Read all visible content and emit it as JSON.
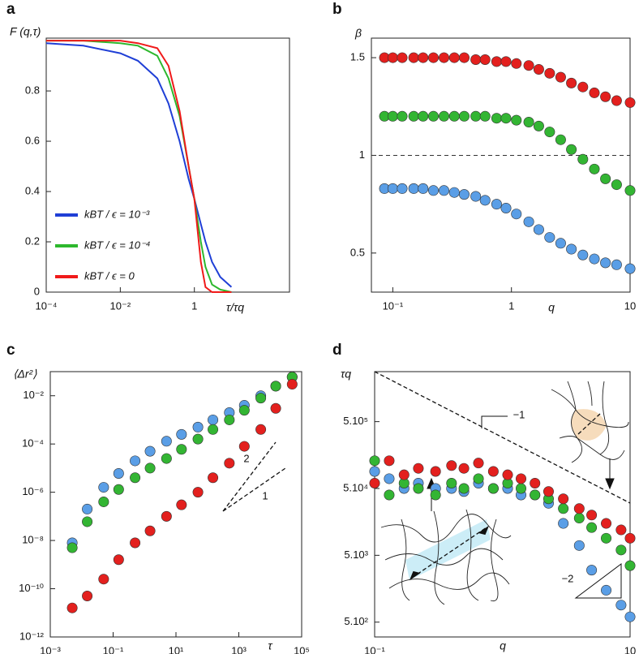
{
  "chart_data": [
    {
      "type": "line",
      "panel": "a",
      "ylabel": "F (q,τ)",
      "xlabel": "τ/τq",
      "xscale": "log",
      "xlim": [
        0.0001,
        370
      ],
      "ylim": [
        0,
        1.01
      ],
      "xticks": [
        {
          "value": 0.0001,
          "label": "10⁻⁴"
        },
        {
          "value": 0.01,
          "label": "10⁻²"
        },
        1
      ],
      "yticks": [
        0,
        0.2,
        0.4,
        0.6,
        0.8
      ],
      "x": [
        0.0001,
        0.001,
        0.01,
        0.03,
        0.1,
        0.2,
        0.4,
        0.7,
        1,
        1.5,
        2,
        3,
        5,
        10
      ],
      "series": [
        {
          "name": "kBT / ϵ = 10⁻³",
          "color": "#1f3fd6",
          "values": [
            0.99,
            0.98,
            0.95,
            0.92,
            0.85,
            0.75,
            0.6,
            0.45,
            0.37,
            0.27,
            0.2,
            0.12,
            0.06,
            0.02
          ]
        },
        {
          "name": "kBT / ϵ = 10⁻⁴",
          "color": "#2db82d",
          "values": [
            1,
            1,
            0.99,
            0.98,
            0.94,
            0.85,
            0.7,
            0.5,
            0.37,
            0.2,
            0.1,
            0.03,
            0.01,
            0
          ]
        },
        {
          "name": "kBT / ϵ = 0",
          "color": "#f01a1a",
          "values": [
            1,
            1,
            1,
            0.99,
            0.97,
            0.9,
            0.72,
            0.5,
            0.37,
            0.12,
            0.02,
            0,
            0,
            0
          ]
        }
      ]
    },
    {
      "type": "scatter",
      "panel": "b",
      "ylabel": "β",
      "xlabel": "q",
      "xscale": "log",
      "xlim": [
        0.066,
        10
      ],
      "ylim": [
        0.3,
        1.6
      ],
      "xticks": [
        {
          "value": 0.1,
          "label": "10⁻¹"
        },
        1,
        10
      ],
      "yticks": [
        0.5,
        1,
        1.5
      ],
      "reference_line": 1,
      "x": [
        0.085,
        0.1,
        0.12,
        0.15,
        0.18,
        0.22,
        0.27,
        0.33,
        0.4,
        0.5,
        0.6,
        0.75,
        0.9,
        1.1,
        1.4,
        1.7,
        2.1,
        2.6,
        3.2,
        4,
        5,
        6.2,
        7.7,
        10
      ],
      "series": [
        {
          "color": "#5a9ee6",
          "values": [
            0.83,
            0.83,
            0.83,
            0.83,
            0.83,
            0.82,
            0.82,
            0.81,
            0.8,
            0.79,
            0.77,
            0.75,
            0.73,
            0.7,
            0.66,
            0.62,
            0.58,
            0.55,
            0.52,
            0.49,
            0.47,
            0.45,
            0.44,
            0.42
          ]
        },
        {
          "color": "#33b533",
          "values": [
            1.2,
            1.2,
            1.2,
            1.2,
            1.2,
            1.2,
            1.2,
            1.2,
            1.2,
            1.2,
            1.2,
            1.19,
            1.19,
            1.18,
            1.17,
            1.15,
            1.12,
            1.08,
            1.03,
            0.98,
            0.93,
            0.88,
            0.85,
            0.82
          ]
        },
        {
          "color": "#e3201e",
          "values": [
            1.5,
            1.5,
            1.5,
            1.5,
            1.5,
            1.5,
            1.5,
            1.5,
            1.5,
            1.49,
            1.49,
            1.48,
            1.48,
            1.47,
            1.46,
            1.44,
            1.42,
            1.4,
            1.37,
            1.35,
            1.32,
            1.3,
            1.28,
            1.27
          ]
        }
      ]
    },
    {
      "type": "scatter",
      "panel": "c",
      "ylabel": "⟨Δr²⟩",
      "xlabel": "τ",
      "xscale": "log",
      "yscale": "log",
      "xlim": [
        0.001,
        100000
      ],
      "ylim": [
        1e-12,
        0.1
      ],
      "xticks": [
        {
          "value": 0.001,
          "label": "10⁻³"
        },
        {
          "value": 0.1,
          "label": "10⁻¹"
        },
        {
          "value": 10,
          "label": "10¹"
        },
        {
          "value": 1000,
          "label": "10³"
        },
        {
          "value": 100000,
          "label": "10⁵"
        }
      ],
      "yticks": [
        {
          "value": 1e-12,
          "label": "10⁻¹²"
        },
        {
          "value": 1e-10,
          "label": "10⁻¹⁰"
        },
        {
          "value": 1e-08,
          "label": "10⁻⁸"
        },
        {
          "value": 1e-06,
          "label": "10⁻⁶"
        },
        {
          "value": 0.0001,
          "label": "10⁻⁴"
        },
        {
          "value": 0.01,
          "label": "10⁻²"
        }
      ],
      "annotations": [
        "2",
        "1"
      ],
      "x": [
        0.005,
        0.015,
        0.05,
        0.15,
        0.5,
        1.5,
        5,
        15,
        50,
        150,
        500,
        1500,
        5000,
        15000,
        50000
      ],
      "series": [
        {
          "color": "#5a9ee6",
          "values": [
            8e-09,
            2e-07,
            1.6e-06,
            6e-06,
            2e-05,
            5e-05,
            0.00013,
            0.00025,
            0.0005,
            0.001,
            0.002,
            0.004,
            0.01,
            0.025,
            0.06
          ]
        },
        {
          "color": "#33b533",
          "values": [
            5e-09,
            6e-08,
            4e-07,
            1.3e-06,
            4e-06,
            1e-05,
            2.5e-05,
            6e-05,
            0.00016,
            0.0004,
            0.001,
            0.0025,
            0.008,
            0.025,
            0.06
          ]
        },
        {
          "color": "#e3201e",
          "values": [
            1.6e-11,
            5e-11,
            2.5e-10,
            1.6e-09,
            8e-09,
            2.5e-08,
            1e-07,
            3e-07,
            1e-06,
            4e-06,
            1.6e-05,
            8e-05,
            0.0004,
            0.003,
            0.03
          ]
        }
      ]
    },
    {
      "type": "scatter",
      "panel": "d",
      "ylabel": "τq",
      "xlabel": "q",
      "xscale": "log",
      "yscale": "log",
      "xlim": [
        0.1,
        10
      ],
      "ylim": [
        300,
        2800000
      ],
      "xticks": [
        {
          "value": 0.1,
          "label": "10⁻¹"
        },
        10
      ],
      "yticks": [
        {
          "value": 500,
          "label": "5.10²"
        },
        {
          "value": 5000,
          "label": "5.10³"
        },
        {
          "value": 50000,
          "label": "5.10⁴"
        },
        {
          "value": 500000,
          "label": "5.10⁵"
        }
      ],
      "annotations": [
        "−1",
        "−2"
      ],
      "x": [
        0.1,
        0.13,
        0.17,
        0.22,
        0.3,
        0.4,
        0.5,
        0.65,
        0.85,
        1.1,
        1.4,
        1.8,
        2.3,
        3,
        4,
        5,
        6.5,
        8.5,
        10
      ],
      "series": [
        {
          "color": "#5a9ee6",
          "values": [
            90000,
            70000,
            50000,
            60000,
            50000,
            50000,
            45000,
            60000,
            50000,
            50000,
            40000,
            40000,
            30000,
            15000,
            7000,
            3000,
            1500,
            900,
            600
          ]
        },
        {
          "color": "#33b533",
          "values": [
            130000,
            40000,
            60000,
            50000,
            40000,
            60000,
            50000,
            70000,
            50000,
            60000,
            50000,
            40000,
            35000,
            25000,
            18000,
            13000,
            9000,
            6000,
            3500
          ]
        },
        {
          "color": "#e3201e",
          "values": [
            60000,
            130000,
            80000,
            100000,
            90000,
            110000,
            100000,
            120000,
            90000,
            80000,
            70000,
            60000,
            45000,
            35000,
            25000,
            20000,
            15000,
            12000,
            9000
          ]
        }
      ]
    }
  ]
}
